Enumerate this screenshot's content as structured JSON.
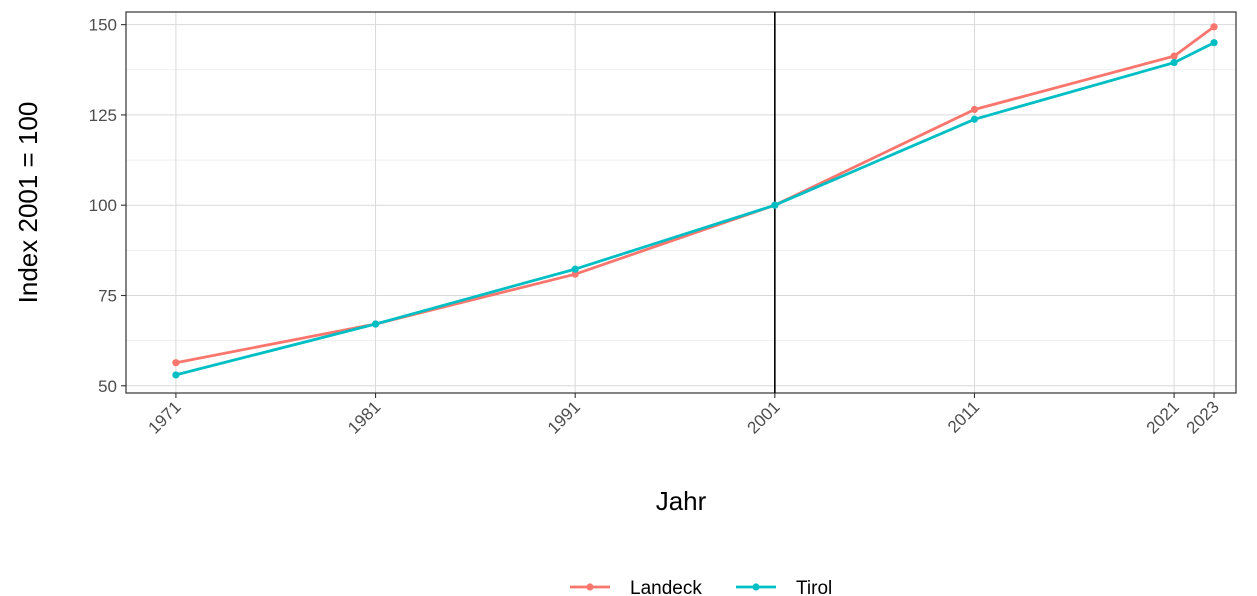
{
  "chart_data": {
    "type": "line",
    "xlabel": "Jahr",
    "ylabel": "Index 2001 = 100",
    "x": [
      1971,
      1981,
      1991,
      2001,
      2011,
      2021,
      2023
    ],
    "x_tick_labels": [
      "1971",
      "1981",
      "1991",
      "2001",
      "2011",
      "2021",
      "2023"
    ],
    "y_ticks": [
      50,
      75,
      100,
      125,
      150
    ],
    "y_tick_labels": [
      "50",
      "75",
      "100",
      "125",
      "150"
    ],
    "xlim": [
      1968.5,
      2024.1
    ],
    "ylim": [
      48,
      153.5
    ],
    "reference_line_x": 2001,
    "grid": true,
    "legend_position": "bottom",
    "series": [
      {
        "name": "Landeck",
        "color": "#F8766D",
        "values": [
          56.4,
          67.1,
          80.9,
          100,
          126.5,
          141.3,
          149.4
        ]
      },
      {
        "name": "Tirol",
        "color": "#00BFC4",
        "values": [
          53.0,
          67.1,
          82.3,
          100,
          123.8,
          139.5,
          145.0
        ]
      }
    ]
  }
}
